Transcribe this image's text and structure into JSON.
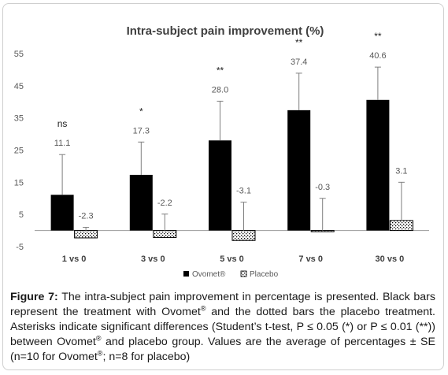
{
  "chart_data": {
    "type": "bar",
    "title": "Intra-subject pain improvement (%)",
    "categories": [
      "1 vs 0",
      "3 vs 0",
      "5 vs 0",
      "7 vs 0",
      "30 vs 0"
    ],
    "ylim": [
      -5,
      55
    ],
    "yticks": [
      -5,
      5,
      15,
      25,
      35,
      45,
      55
    ],
    "grid": false,
    "legend_position": "bottom",
    "series": [
      {
        "name": "Ovomet®",
        "values": [
          11.1,
          17.3,
          28.0,
          37.4,
          40.6
        ],
        "labels": [
          "11.1",
          "17.3",
          "28.0",
          "37.4",
          "40.6"
        ],
        "error": [
          12.5,
          10.2,
          12.2,
          11.5,
          10.2
        ],
        "color": "#000000",
        "pattern": "solid"
      },
      {
        "name": "Placebo",
        "values": [
          -2.3,
          -2.2,
          -3.1,
          -0.3,
          3.1
        ],
        "labels": [
          "-2.3",
          "-2.2",
          "-3.1",
          "-0.3",
          "3.1"
        ],
        "error": [
          3.3,
          7.3,
          11.9,
          10.3,
          11.9
        ],
        "color": "#ffffff",
        "pattern": "dotted"
      }
    ],
    "significance": [
      "ns",
      "*",
      "**",
      "**",
      "**"
    ]
  },
  "caption": {
    "label": "Figure 7:",
    "lines": [
      "The intra-subject pain improvement in percentage is presented.",
      "Black bars represent the treatment with Ovomet",
      "and the dotted bars the placebo treatment. Asterisks indicate significant differences (Student’s t-test, P ≤ 0.05 (*) or P ≤ 0.01 (**)) between Ovomet",
      "and placebo group. Values are the average of percentages ± SE (n=10 for Ovomet",
      "; n=8 for placebo)"
    ],
    "reg": "®"
  }
}
